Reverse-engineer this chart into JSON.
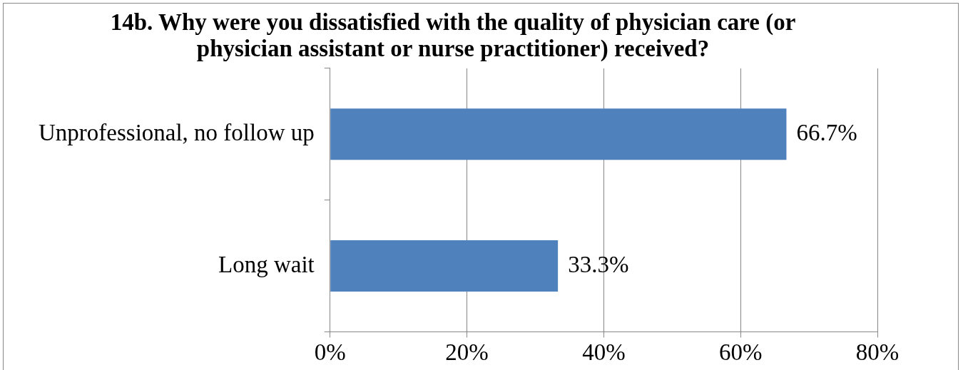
{
  "chart_data": {
    "type": "bar",
    "orientation": "horizontal",
    "title": "14b. Why were you dissatisfied with the quality of physician care (or physician assistant or nurse practitioner) received?",
    "categories": [
      "Unprofessional, no follow up",
      "Long wait"
    ],
    "values": [
      66.7,
      33.3
    ],
    "value_labels": [
      "66.7%",
      "33.3%"
    ],
    "color": "#4f81bd",
    "xlim": [
      0,
      80
    ],
    "xticks": [
      {
        "value": 0,
        "label": "0%"
      },
      {
        "value": 20,
        "label": "20%"
      },
      {
        "value": 40,
        "label": "40%"
      },
      {
        "value": 60,
        "label": "60%"
      },
      {
        "value": 80,
        "label": "80%"
      }
    ],
    "grid": "x"
  }
}
